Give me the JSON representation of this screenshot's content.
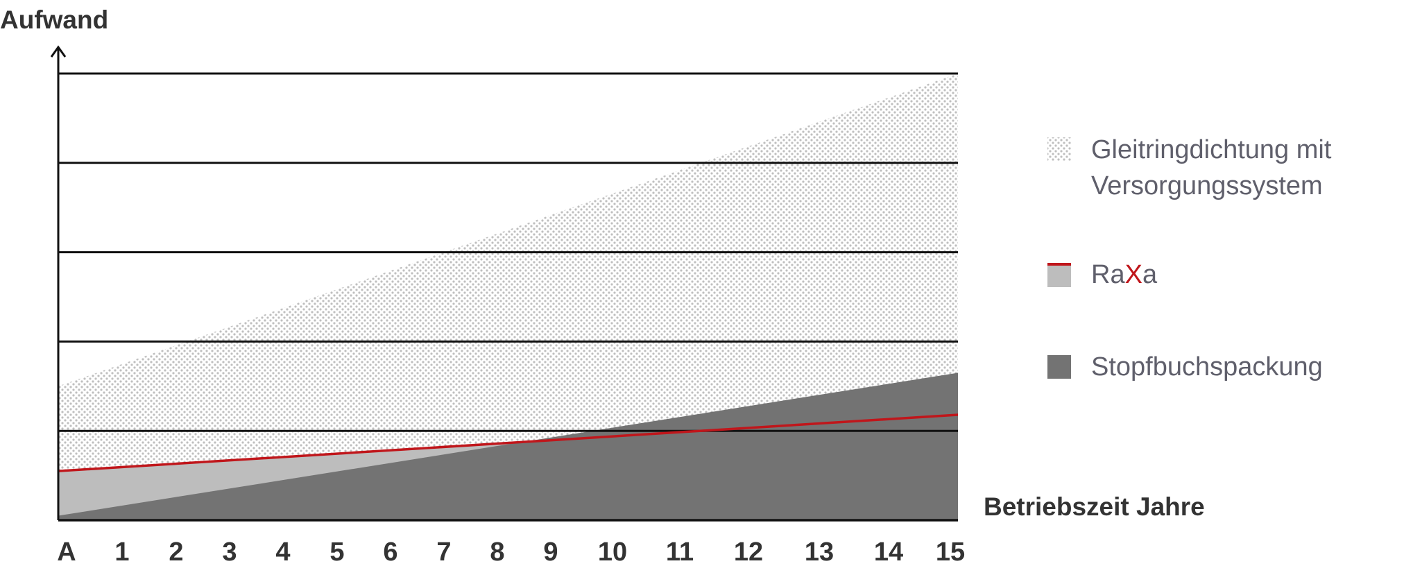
{
  "chart_data": {
    "type": "area",
    "ylabel": "Aufwand",
    "xlabel": "Betriebszeit Jahre",
    "categories": [
      "A",
      "1",
      "2",
      "3",
      "4",
      "5",
      "6",
      "7",
      "8",
      "9",
      "10",
      "11",
      "12",
      "13",
      "14",
      "15"
    ],
    "x": [
      0,
      15
    ],
    "ylim": [
      0,
      5
    ],
    "grid": true,
    "legend_position": "right",
    "series": [
      {
        "name": "Gleitringdichtung mit Versorgungssystem",
        "kind": "dotted-area",
        "values": [
          1.5,
          5.0
        ]
      },
      {
        "name": "RaXa",
        "kind": "line-with-light-area",
        "values": [
          0.55,
          1.18
        ]
      },
      {
        "name": "Stopfbuchspackung",
        "kind": "dark-area",
        "values": [
          0.05,
          1.65
        ]
      }
    ],
    "legend": {
      "gleit_line1": "Gleitringdichtung mit",
      "gleit_line2": "Versorgungssystem",
      "raxa_a": "Ra",
      "raxa_x": "X",
      "raxa_b": "a",
      "stopf": "Stopfbuchspackung"
    },
    "colors": {
      "dotted": "#c8c8c8",
      "light": "#bdbdbd",
      "dark": "#737373",
      "red": "#c0161b",
      "axis": "#111111"
    }
  }
}
